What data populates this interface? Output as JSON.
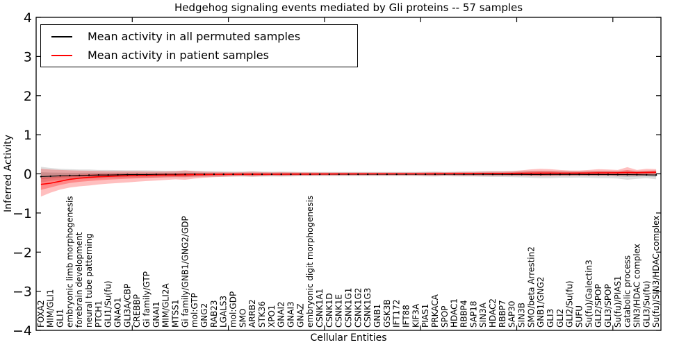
{
  "figure": {
    "title": "Hedgehog signaling events mediated by Gli proteins -- 57 samples",
    "xlabel": "Cellular Entities",
    "ylabel": "Inferred Activity"
  },
  "legend": {
    "items": [
      {
        "label": "Mean activity in all permuted samples",
        "color": "#000000"
      },
      {
        "label": "Mean activity in patient samples",
        "color": "#ff0000"
      }
    ]
  },
  "chart_data": {
    "type": "line",
    "title": "Hedgehog signaling events mediated by Gli proteins -- 57 samples",
    "xlabel": "Cellular Entities",
    "ylabel": "Inferred Activity",
    "ylim": [
      -4,
      4
    ],
    "yticks": [
      4,
      3,
      2,
      1,
      0,
      -1,
      -2,
      -3,
      -4
    ],
    "ytick_labels": [
      "4",
      "3",
      "2",
      "1",
      "0",
      "−1",
      "−2",
      "−3",
      "−4"
    ],
    "grid": false,
    "legend_position": "upper left",
    "categories": [
      "FOXA2",
      "MIM/GLI1",
      "GLI1",
      "embryonic limb morphogenesis",
      "forebrain development",
      "neural tube patterning",
      "PTCH1",
      "GLI1/Su(fu)",
      "GNAO1",
      "GLI3A/CBP",
      "CREBBP",
      "Gi family/GTP",
      "GNAI1",
      "MIM/GLI2A",
      "MTSS1",
      "Gi family/GNB1/GNG2/GDP",
      "mol:GTP",
      "GNG2",
      "RAB23",
      "LGALS3",
      "mol:GDP",
      "SMO",
      "ARRB2",
      "STK36",
      "XPO1",
      "GNAI2",
      "GNAI3",
      "GNAZ",
      "embryonic digit morphogenesis",
      "CSNK1A1",
      "CSNK1D",
      "CSNK1E",
      "CSNK1G1",
      "CSNK1G2",
      "CSNK1G3",
      "GNB1",
      "GSK3B",
      "IFT172",
      "IFT88",
      "KIF3A",
      "PIAS1",
      "PRKACA",
      "SPOP",
      "HDAC1",
      "RBBP4",
      "SAP18",
      "SIN3A",
      "HDAC2",
      "RBBP7",
      "SAP30",
      "SIN3B",
      "SMO/beta Arrestin2",
      "GNB1/GNG2",
      "GLI3",
      "GLI2",
      "GLI2/Su(fu)",
      "SUFU",
      "Su(fu)/Galectin3",
      "GLI2/SPOP",
      "GLI3/SPOP",
      "Su(fu)/PIAS1",
      "catabolic process",
      "SIN3/HDAC complex",
      "GLI3/Su(fu)",
      "Su(fu)/SIN3/HDAC complex"
    ],
    "series": [
      {
        "name": "Mean activity in all permuted samples",
        "color": "#000000",
        "markers": true,
        "band_color": "#000000",
        "band_opacity": 0.13,
        "values": [
          -0.07,
          -0.06,
          -0.05,
          -0.045,
          -0.04,
          -0.035,
          -0.03,
          -0.03,
          -0.025,
          -0.02,
          -0.02,
          -0.02,
          -0.015,
          -0.015,
          -0.015,
          -0.015,
          -0.01,
          -0.01,
          -0.01,
          -0.01,
          -0.01,
          -0.01,
          -0.01,
          -0.01,
          -0.01,
          -0.01,
          -0.01,
          -0.01,
          -0.01,
          -0.01,
          -0.01,
          -0.01,
          -0.01,
          -0.01,
          -0.01,
          -0.01,
          -0.01,
          -0.01,
          -0.01,
          -0.01,
          -0.01,
          -0.01,
          -0.01,
          -0.01,
          -0.01,
          -0.01,
          -0.01,
          -0.012,
          -0.012,
          -0.014,
          -0.015,
          -0.016,
          -0.016,
          -0.015,
          -0.014,
          -0.014,
          -0.015,
          -0.016,
          -0.016,
          -0.018,
          -0.02,
          -0.02,
          -0.022,
          -0.025,
          -0.03
        ],
        "band_lower": [
          -0.22,
          -0.18,
          -0.15,
          -0.14,
          -0.13,
          -0.12,
          -0.12,
          -0.11,
          -0.11,
          -0.1,
          -0.1,
          -0.1,
          -0.095,
          -0.09,
          -0.09,
          -0.09,
          -0.085,
          -0.08,
          -0.08,
          -0.075,
          -0.07,
          -0.07,
          -0.075,
          -0.07,
          -0.065,
          -0.07,
          -0.065,
          -0.06,
          -0.06,
          -0.06,
          -0.06,
          -0.06,
          -0.06,
          -0.06,
          -0.06,
          -0.06,
          -0.06,
          -0.06,
          -0.06,
          -0.06,
          -0.065,
          -0.07,
          -0.06,
          -0.065,
          -0.07,
          -0.07,
          -0.075,
          -0.08,
          -0.08,
          -0.085,
          -0.09,
          -0.1,
          -0.11,
          -0.11,
          -0.1,
          -0.1,
          -0.095,
          -0.1,
          -0.11,
          -0.11,
          -0.12,
          -0.15,
          -0.13,
          -0.11,
          -0.14
        ],
        "band_upper": [
          0.18,
          0.15,
          0.13,
          0.12,
          0.11,
          0.11,
          0.1,
          0.1,
          0.095,
          0.09,
          0.09,
          0.09,
          0.085,
          0.08,
          0.08,
          0.08,
          0.075,
          0.07,
          0.07,
          0.065,
          0.06,
          0.06,
          0.065,
          0.06,
          0.055,
          0.06,
          0.055,
          0.05,
          0.05,
          0.05,
          0.05,
          0.05,
          0.05,
          0.05,
          0.05,
          0.05,
          0.05,
          0.05,
          0.05,
          0.05,
          0.055,
          0.06,
          0.05,
          0.055,
          0.06,
          0.06,
          0.065,
          0.07,
          0.07,
          0.07,
          0.075,
          0.08,
          0.08,
          0.08,
          0.075,
          0.075,
          0.07,
          0.075,
          0.08,
          0.08,
          0.08,
          0.09,
          0.08,
          0.08,
          0.09
        ]
      },
      {
        "name": "Mean activity in patient samples",
        "color": "#ff0000",
        "markers": false,
        "band_color": "#ff0000",
        "band_opacity": 0.25,
        "values": [
          -0.27,
          -0.24,
          -0.19,
          -0.14,
          -0.11,
          -0.09,
          -0.075,
          -0.065,
          -0.055,
          -0.05,
          -0.045,
          -0.04,
          -0.035,
          -0.03,
          -0.03,
          -0.025,
          -0.02,
          -0.02,
          -0.015,
          -0.015,
          -0.01,
          -0.01,
          -0.01,
          -0.01,
          -0.008,
          -0.008,
          -0.006,
          -0.005,
          -0.005,
          -0.004,
          -0.003,
          -0.002,
          -0.002,
          -0.001,
          0,
          0,
          0,
          0,
          0,
          0,
          0,
          0.002,
          0.003,
          0.004,
          0.005,
          0.006,
          0.008,
          0.01,
          0.01,
          0.012,
          0.015,
          0.018,
          0.02,
          0.02,
          0.018,
          0.018,
          0.02,
          0.022,
          0.025,
          0.025,
          0.028,
          0.035,
          0.03,
          0.035,
          0.04
        ],
        "band_lower": [
          -0.58,
          -0.48,
          -0.4,
          -0.35,
          -0.32,
          -0.3,
          -0.27,
          -0.25,
          -0.235,
          -0.22,
          -0.2,
          -0.185,
          -0.17,
          -0.155,
          -0.14,
          -0.15,
          -0.12,
          -0.1,
          -0.085,
          -0.075,
          -0.065,
          -0.06,
          -0.07,
          -0.06,
          -0.05,
          -0.055,
          -0.05,
          -0.045,
          -0.045,
          -0.04,
          -0.04,
          -0.04,
          -0.04,
          -0.04,
          -0.04,
          -0.04,
          -0.04,
          -0.04,
          -0.04,
          -0.04,
          -0.045,
          -0.05,
          -0.04,
          -0.045,
          -0.05,
          -0.05,
          -0.05,
          -0.05,
          -0.05,
          -0.05,
          -0.05,
          -0.055,
          -0.06,
          -0.055,
          -0.05,
          -0.05,
          -0.045,
          -0.045,
          -0.045,
          -0.045,
          -0.05,
          -0.045,
          -0.05,
          -0.04,
          -0.035
        ],
        "band_upper": [
          0.13,
          0.11,
          0.1,
          0.09,
          0.085,
          0.08,
          0.075,
          0.07,
          0.07,
          0.065,
          0.065,
          0.06,
          0.06,
          0.06,
          0.065,
          0.09,
          0.065,
          0.055,
          0.05,
          0.045,
          0.04,
          0.045,
          0.055,
          0.045,
          0.04,
          0.045,
          0.04,
          0.038,
          0.038,
          0.035,
          0.035,
          0.035,
          0.035,
          0.035,
          0.035,
          0.035,
          0.035,
          0.035,
          0.035,
          0.035,
          0.04,
          0.045,
          0.04,
          0.045,
          0.05,
          0.05,
          0.055,
          0.06,
          0.06,
          0.07,
          0.09,
          0.115,
          0.13,
          0.12,
          0.1,
          0.085,
          0.085,
          0.1,
          0.12,
          0.11,
          0.1,
          0.17,
          0.1,
          0.13,
          0.12
        ]
      }
    ]
  }
}
